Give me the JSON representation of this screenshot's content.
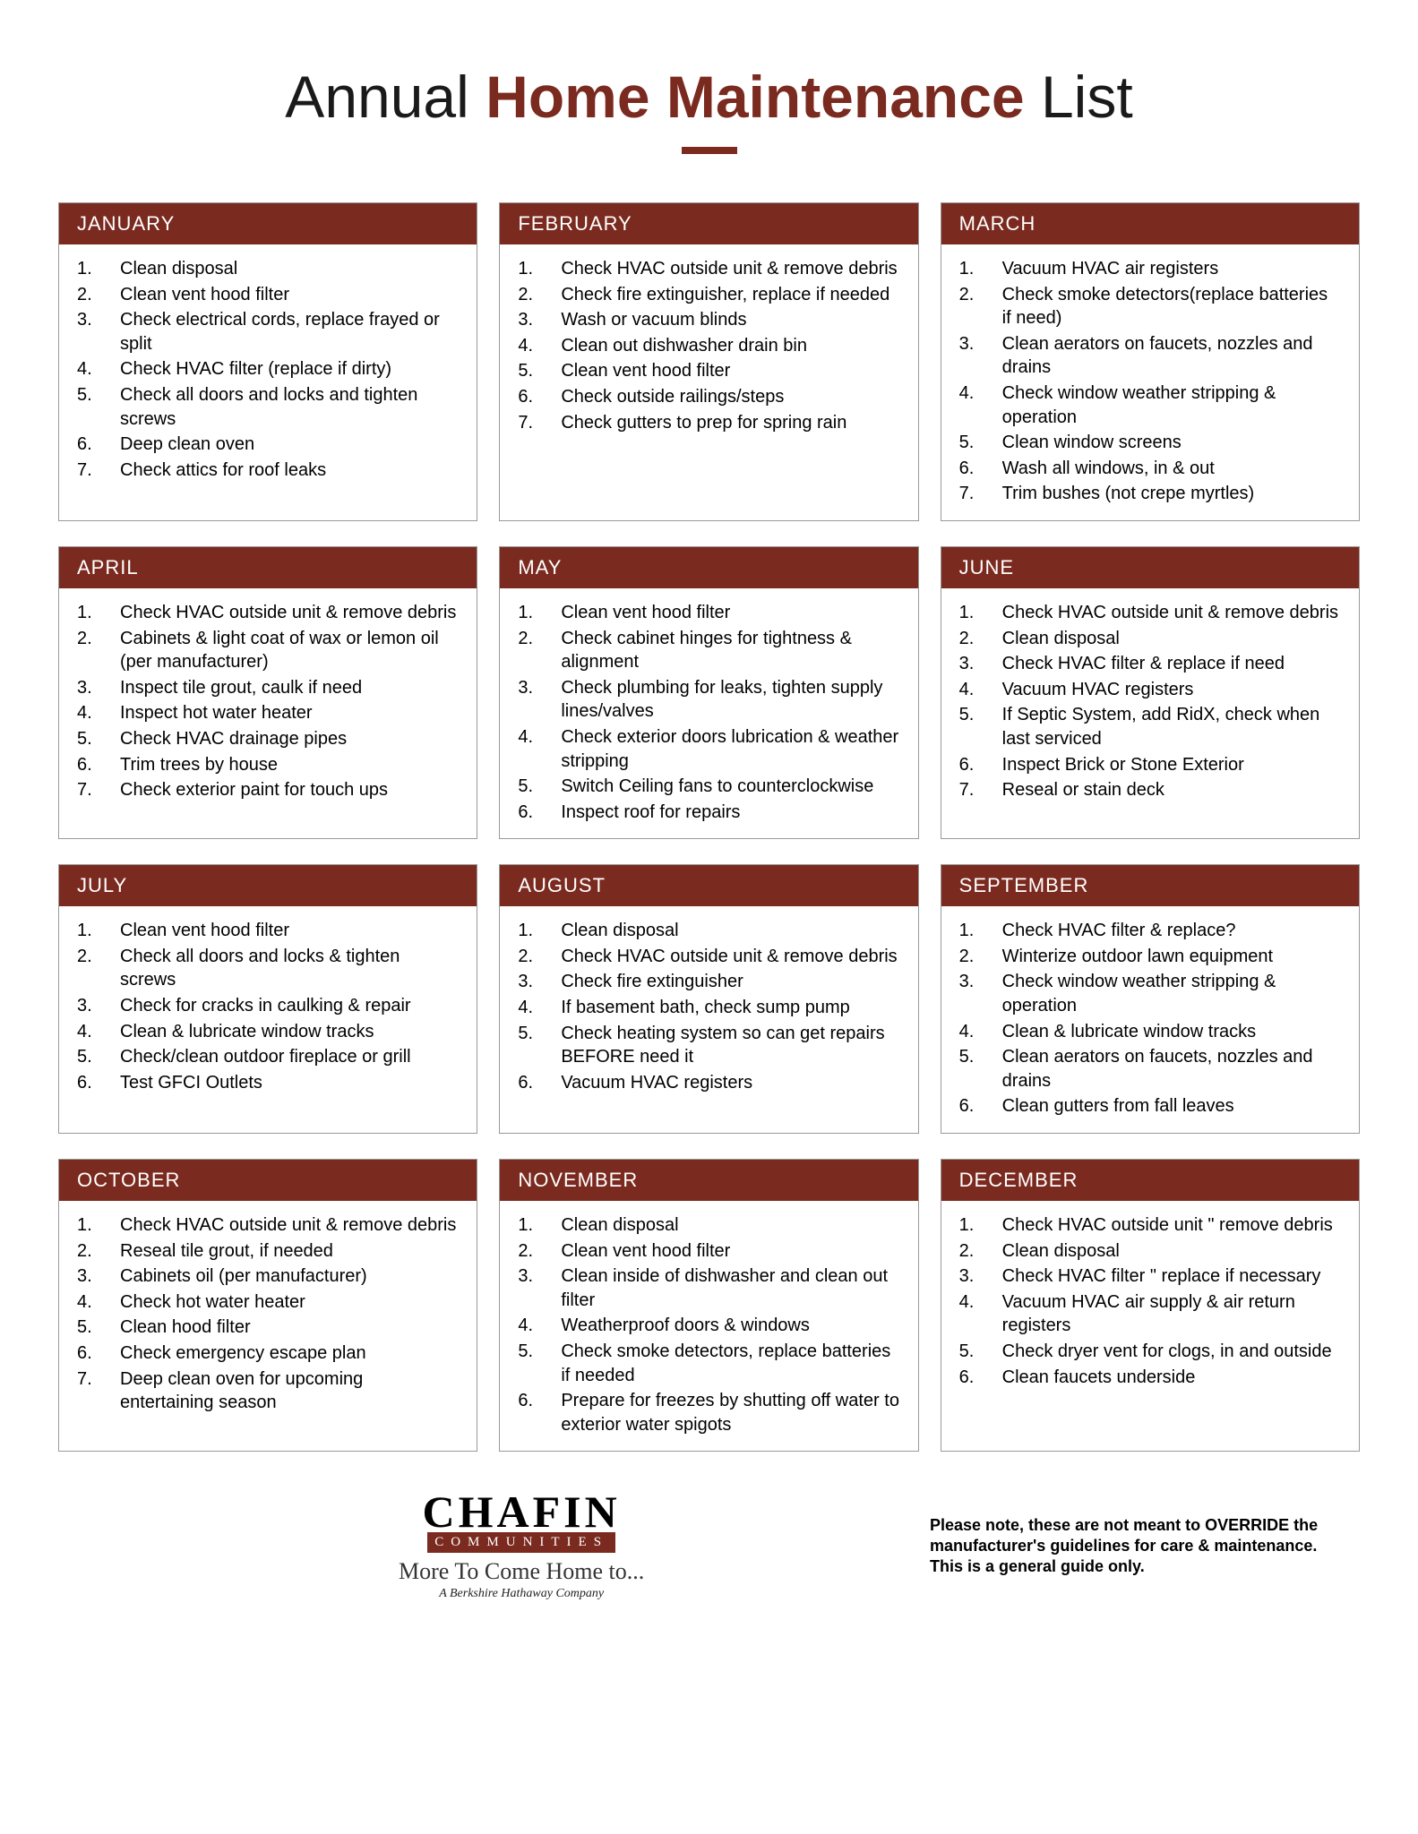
{
  "title": {
    "part1": "Annual ",
    "part2": "Home Maintenance",
    "part3": " List"
  },
  "accent_color": "#7a2a1f",
  "months": [
    {
      "name": "JANUARY",
      "items": [
        "Clean disposal",
        "Clean vent hood filter",
        "Check electrical cords, replace frayed or split",
        "Check HVAC filter (replace if dirty)",
        "Check all doors and locks and tighten screws",
        "Deep clean oven",
        "Check attics for roof leaks"
      ]
    },
    {
      "name": "FEBRUARY",
      "items": [
        "Check HVAC outside unit & remove debris",
        "Check fire extinguisher, replace if needed",
        "Wash or vacuum blinds",
        "Clean out dishwasher drain bin",
        "Clean vent hood filter",
        "Check  outside railings/steps",
        "Check gutters to prep for spring rain"
      ]
    },
    {
      "name": "MARCH",
      "items": [
        "Vacuum HVAC air registers",
        "Check smoke detectors(replace batteries if need)",
        "Clean aerators on faucets, nozzles and drains",
        "Check window weather stripping & operation",
        "Clean window screens",
        "Wash all windows, in & out",
        "Trim bushes (not crepe myrtles)"
      ]
    },
    {
      "name": "APRIL",
      "items": [
        "Check HVAC outside unit & remove debris",
        "Cabinets & light coat of wax or lemon oil (per manufacturer)",
        "Inspect tile grout, caulk if need",
        "Inspect hot water heater",
        "Check HVAC drainage pipes",
        "Trim trees by house",
        "Check exterior paint for touch ups"
      ]
    },
    {
      "name": "MAY",
      "items": [
        "Clean vent hood filter",
        "Check cabinet hinges for tightness & alignment",
        "Check plumbing for leaks, tighten supply lines/valves",
        "Check exterior doors lubrication & weather stripping",
        "Switch Ceiling fans to counterclockwise",
        "Inspect roof for repairs"
      ]
    },
    {
      "name": "JUNE",
      "items": [
        "Check HVAC outside unit & remove debris",
        "Clean disposal",
        "Check HVAC filter & replace if need",
        "Vacuum HVAC registers",
        "If Septic System, add RidX, check when last serviced",
        "Inspect Brick or Stone Exterior",
        "Reseal or stain deck"
      ]
    },
    {
      "name": "JULY",
      "items": [
        "Clean vent hood filter",
        "Check all doors and locks & tighten screws",
        "Check for cracks in caulking & repair",
        "Clean & lubricate window tracks",
        "Check/clean outdoor fireplace or grill",
        "Test GFCI Outlets"
      ]
    },
    {
      "name": "AUGUST",
      "items": [
        "Clean disposal",
        "Check HVAC outside unit & remove debris",
        "Check fire extinguisher",
        "If basement bath, check sump pump",
        "Check heating system so can get repairs BEFORE need it",
        "Vacuum HVAC registers"
      ]
    },
    {
      "name": "SEPTEMBER",
      "items": [
        "Check HVAC filter & replace?",
        "Winterize outdoor lawn equipment",
        "Check window weather stripping & operation",
        "Clean & lubricate window tracks",
        "Clean aerators on faucets, nozzles and drains",
        "Clean gutters from fall leaves"
      ]
    },
    {
      "name": "OCTOBER",
      "items": [
        "Check HVAC outside unit & remove debris",
        "Reseal tile grout, if needed",
        "Cabinets oil (per manufacturer)",
        "Check hot water heater",
        "Clean hood filter",
        "Check emergency escape plan",
        "Deep clean oven for upcoming entertaining season"
      ]
    },
    {
      "name": "NOVEMBER",
      "items": [
        "Clean disposal",
        "Clean vent hood filter",
        "Clean inside of dishwasher and clean out filter",
        "Weatherproof doors & windows",
        "Check smoke detectors, replace batteries if needed",
        "Prepare for freezes by shutting off water to exterior water spigots"
      ]
    },
    {
      "name": "DECEMBER",
      "items": [
        "Check HVAC outside unit \" remove debris",
        "Clean disposal",
        "Check HVAC filter \" replace if necessary",
        "Vacuum HVAC air supply & air return registers",
        "Check dryer vent for clogs, in and outside",
        "Clean faucets underside"
      ]
    }
  ],
  "logo": {
    "name": "CHAFIN",
    "subtitle": "COMMUNITIES",
    "tagline": "More To Come Home to...",
    "subtag": "A Berkshire Hathaway Company"
  },
  "disclaimer": "Please note, these are not meant to OVERRIDE the manufacturer's guidelines for care & maintenance.  This is a general guide only."
}
